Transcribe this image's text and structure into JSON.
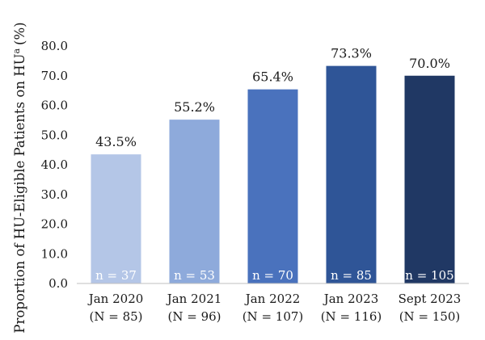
{
  "chart_data": {
    "type": "bar",
    "title": "",
    "ylabel": "Proportion of HU-Eligible Patients on HU",
    "ylabel_superscript": "a",
    "ylabel_unit": "(%)",
    "ylim": [
      0,
      80
    ],
    "yticks": [
      "0.0",
      "10.0",
      "20.0",
      "30.0",
      "40.0",
      "50.0",
      "60.0",
      "70.0",
      "80.0"
    ],
    "grid": false,
    "categories": [
      "Jan 2020",
      "Jan 2021",
      "Jan 2022",
      "Jan 2023",
      "Sept 2023"
    ],
    "category_totals": [
      "(N = 85)",
      "(N = 96)",
      "(N = 107)",
      "(N = 116)",
      "(N = 150)"
    ],
    "values": [
      43.5,
      55.2,
      65.4,
      73.3,
      70.0
    ],
    "value_labels": [
      "43.5%",
      "55.2%",
      "65.4%",
      "73.3%",
      "70.0%"
    ],
    "bar_counts": [
      "n = 37",
      "n = 53",
      "n = 70",
      "n = 85",
      "n = 105"
    ],
    "colors": [
      "#b4c6e7",
      "#8eaadb",
      "#4a72bd",
      "#2f5597",
      "#203864"
    ]
  }
}
